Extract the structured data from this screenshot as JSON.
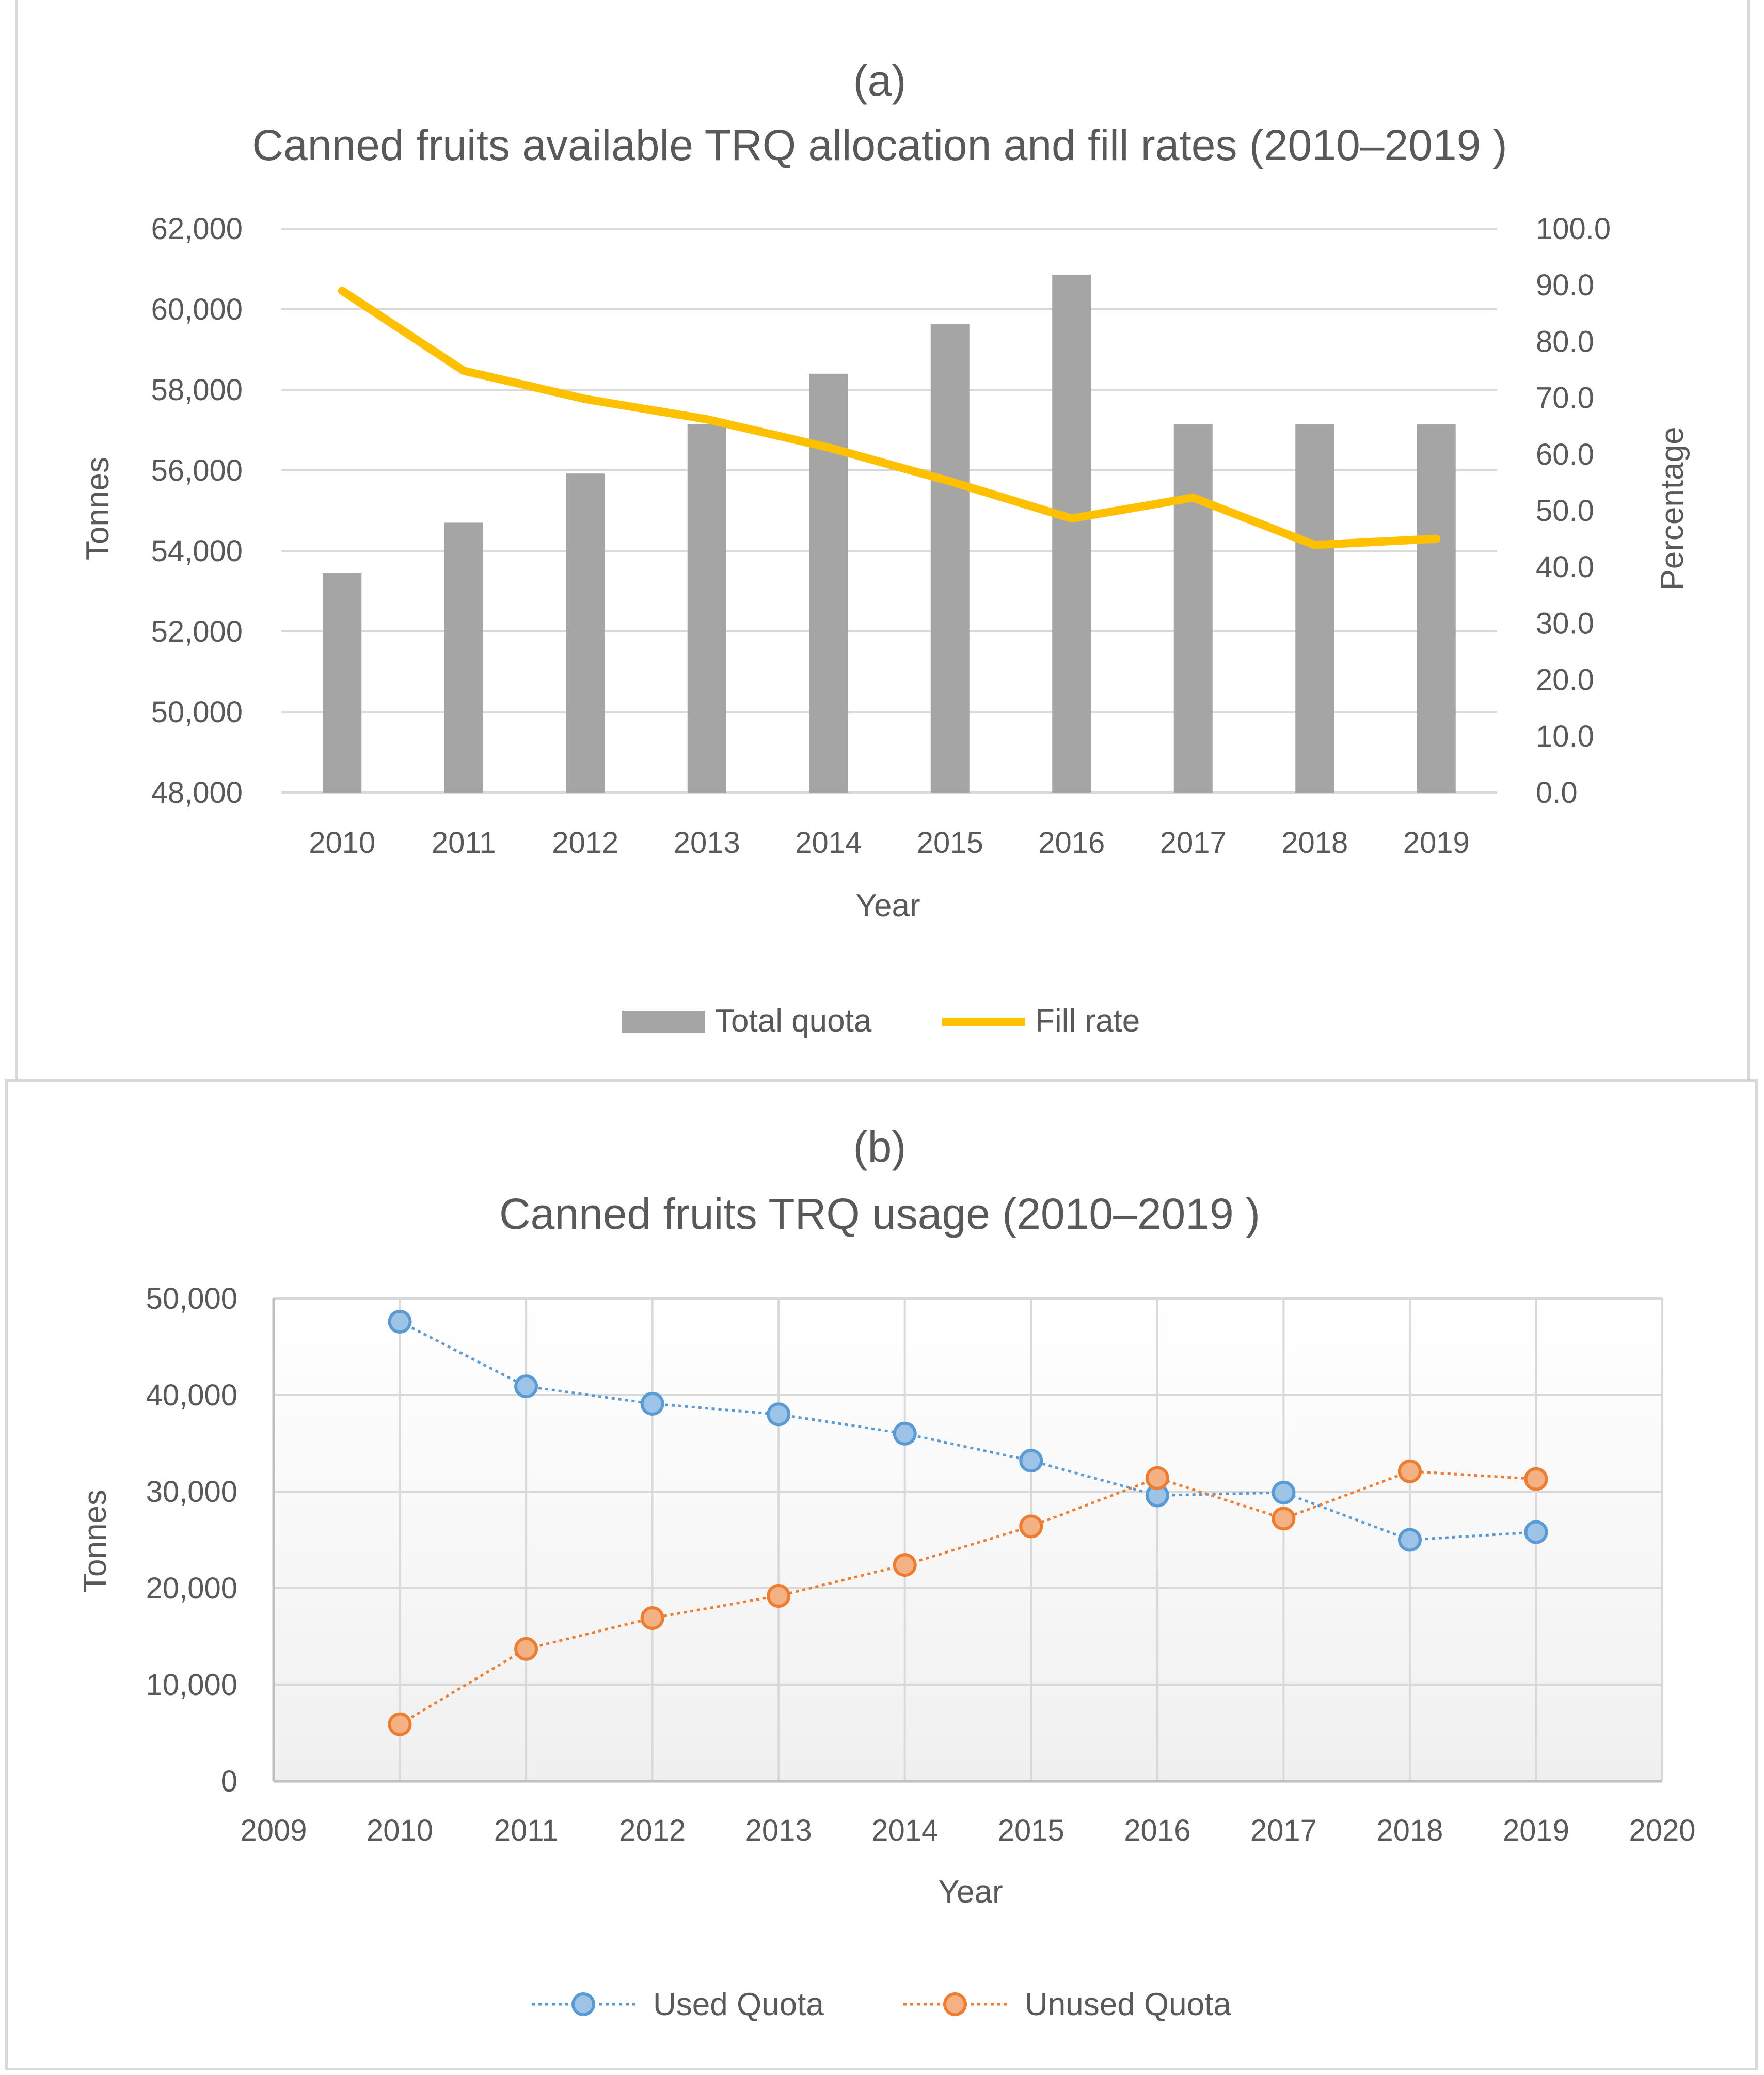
{
  "chart_data": [
    {
      "type": "bar",
      "panel_label": "(a)",
      "title": "Canned fruits available TRQ allocation and fill rates (2010–2019 )",
      "xlabel": "Year",
      "ylabel": "Tonnes",
      "y2label": "Percentage",
      "categories": [
        "2010",
        "2011",
        "2012",
        "2013",
        "2014",
        "2015",
        "2016",
        "2017",
        "2018",
        "2019"
      ],
      "ylim": [
        48000,
        62000
      ],
      "y_ticks": [
        "48,000",
        "50,000",
        "52,000",
        "54,000",
        "56,000",
        "58,000",
        "60,000",
        "62,000"
      ],
      "y2lim": [
        0,
        100
      ],
      "y2_ticks": [
        "0.0",
        "10.0",
        "20.0",
        "30.0",
        "40.0",
        "50.0",
        "60.0",
        "70.0",
        "80.0",
        "90.0",
        "100.0"
      ],
      "grid": true,
      "legend_position": "bottom",
      "series": [
        {
          "name": "Total quota",
          "type": "bar",
          "axis": "left",
          "color": "#a5a5a5",
          "values": [
            53450,
            54700,
            55920,
            57150,
            58400,
            59630,
            60860,
            57150,
            57150,
            57150
          ]
        },
        {
          "name": "Fill rate",
          "type": "line",
          "axis": "right",
          "color": "#ffc000",
          "values": [
            89.0,
            74.8,
            69.8,
            66.2,
            61.2,
            55.2,
            48.6,
            52.3,
            43.9,
            45.0
          ]
        }
      ]
    },
    {
      "type": "line",
      "panel_label": "(b)",
      "title": "Canned fruits TRQ usage (2010–2019 )",
      "xlabel": "Year",
      "ylabel": "Tonnes",
      "x": [
        2010,
        2011,
        2012,
        2013,
        2014,
        2015,
        2016,
        2017,
        2018,
        2019
      ],
      "xlim": [
        2009,
        2020
      ],
      "x_ticks": [
        "2009",
        "2010",
        "2011",
        "2012",
        "2013",
        "2014",
        "2015",
        "2016",
        "2017",
        "2018",
        "2019",
        "2020"
      ],
      "ylim": [
        0,
        50000
      ],
      "y_ticks": [
        "0",
        "10,000",
        "20,000",
        "30,000",
        "40,000",
        "50,000"
      ],
      "grid": true,
      "legend_position": "bottom",
      "series": [
        {
          "name": "Used Quota",
          "color": "#5b9bd5",
          "fill": "#9dc3e6",
          "values": [
            47600,
            40900,
            39100,
            38000,
            36000,
            33200,
            29600,
            29900,
            25000,
            25800
          ]
        },
        {
          "name": "Unused Quota",
          "color": "#ed7d31",
          "fill": "#f4b183",
          "values": [
            5900,
            13700,
            16900,
            19200,
            22400,
            26400,
            31400,
            27200,
            32100,
            31300
          ]
        }
      ]
    }
  ]
}
